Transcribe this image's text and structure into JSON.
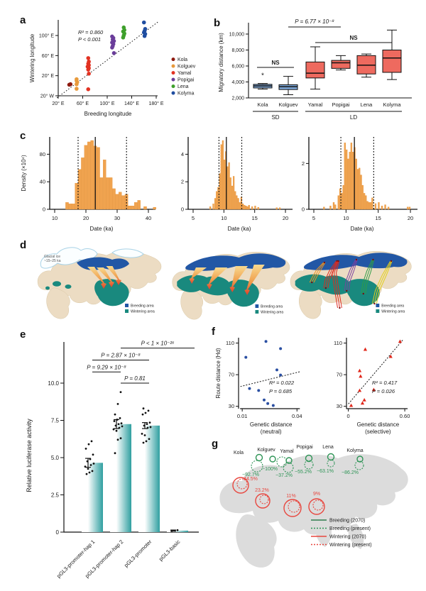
{
  "panels": {
    "a": "a",
    "b": "b",
    "c": "c",
    "d": "d",
    "e": "e",
    "f": "f",
    "g": "g"
  },
  "chart_data": [
    {
      "id": "a",
      "type": "scatter",
      "xlabel": "Breeding longitude",
      "ylabel": "Wintering longitude",
      "r2": "R² = 0.860",
      "p": "P < 0.001",
      "xtick_vals": [
        20,
        60,
        100,
        140,
        180
      ],
      "xtick_labels": [
        "20° E",
        "60° E",
        "100° E",
        "140° E",
        "180° E"
      ],
      "ytick_vals": [
        -20,
        20,
        60,
        100
      ],
      "ytick_labels": [
        "20° W",
        "20° E",
        "60° E",
        "100° E"
      ],
      "xlim": [
        14,
        186
      ],
      "ylim": [
        -28,
        132
      ],
      "trend": [
        [
          18,
          -24
        ],
        [
          184,
          128
        ]
      ],
      "series": [
        {
          "name": "Kola",
          "color": "#8e1b10",
          "points": [
            [
              38,
              2
            ],
            [
              40,
              3
            ]
          ]
        },
        {
          "name": "Kolguev",
          "color": "#e89a3c",
          "points": [
            [
              50,
              13
            ],
            [
              50,
              10
            ],
            [
              51,
              7
            ],
            [
              50,
              3
            ],
            [
              50,
              -6
            ]
          ]
        },
        {
          "name": "Yamal",
          "color": "#e23222",
          "points": [
            [
              69,
              55
            ],
            [
              70,
              48
            ],
            [
              69,
              44
            ],
            [
              70,
              41
            ],
            [
              68,
              38
            ],
            [
              70,
              35
            ],
            [
              69,
              32
            ],
            [
              70,
              24
            ],
            [
              69,
              -7
            ]
          ]
        },
        {
          "name": "Popigai",
          "color": "#6a3d9a",
          "points": [
            [
              108,
              98
            ],
            [
              110,
              95
            ],
            [
              109,
              92
            ],
            [
              111,
              89
            ],
            [
              108,
              86
            ],
            [
              110,
              83
            ],
            [
              109,
              79
            ],
            [
              108,
              76
            ],
            [
              111,
              65
            ]
          ]
        },
        {
          "name": "Lena",
          "color": "#3fa02c",
          "points": [
            [
              127,
              116
            ],
            [
              128,
              111
            ],
            [
              126,
              108
            ],
            [
              128,
              104
            ],
            [
              127,
              100
            ],
            [
              126,
              96
            ]
          ]
        },
        {
          "name": "Kolyma",
          "color": "#1f4da0",
          "points": [
            [
              160,
              126
            ],
            [
              162,
              113
            ],
            [
              161,
              109
            ],
            [
              160,
              106
            ],
            [
              162,
              103
            ],
            [
              161,
              99
            ]
          ]
        }
      ]
    },
    {
      "id": "b",
      "type": "box",
      "ylabel": "Migratory distance (km)",
      "ytick_vals": [
        2000,
        4000,
        6000,
        8000,
        10000
      ],
      "ytick_labels": [
        "2,000",
        "4,000",
        "6,000",
        "8,000",
        "10,000"
      ],
      "categories": [
        "Kola",
        "Kolguev",
        "Yamal",
        "Popigai",
        "Lena",
        "Kolyma"
      ],
      "group_sd": "SD",
      "group_ld": "LD",
      "p_label": "P = 6.77 × 10⁻⁸",
      "ns1": "NS",
      "ns2": "NS",
      "blue": "#7da7d8",
      "red": "#ee6a5f",
      "boxes": [
        {
          "lo": 3100,
          "q1": 3250,
          "med": 3500,
          "q3": 3700,
          "hi": 3800,
          "out": [
            4800
          ]
        },
        {
          "lo": 2400,
          "q1": 3050,
          "med": 3400,
          "q3": 3650,
          "hi": 4700,
          "out": []
        },
        {
          "lo": 3100,
          "q1": 4500,
          "med": 5100,
          "q3": 6500,
          "hi": 8400,
          "out": []
        },
        {
          "lo": 5500,
          "q1": 5700,
          "med": 6400,
          "q3": 6700,
          "hi": 7300,
          "out": []
        },
        {
          "lo": 4600,
          "q1": 5000,
          "med": 6100,
          "q3": 7300,
          "hi": 7500,
          "out": []
        },
        {
          "lo": 4300,
          "q1": 5200,
          "med": 7000,
          "q3": 8000,
          "hi": 10500,
          "out": []
        }
      ]
    },
    {
      "id": "c1",
      "type": "histogram",
      "ylabel": "Density (×10⁴)",
      "xlabel": "Date (ka)",
      "xtick_vals": [
        10,
        20,
        30,
        40
      ],
      "ytick_vals": [
        0,
        40,
        80
      ],
      "solid": 23,
      "dashed": [
        17.5,
        33
      ],
      "binwidth": 1,
      "color": "#f0a34f",
      "bins": [
        [
          14,
          10
        ],
        [
          15,
          8
        ],
        [
          16,
          8
        ],
        [
          17,
          38
        ],
        [
          18,
          58
        ],
        [
          19,
          75
        ],
        [
          20,
          93
        ],
        [
          21,
          98
        ],
        [
          22,
          100
        ],
        [
          23,
          92
        ],
        [
          24,
          90
        ],
        [
          25,
          46
        ],
        [
          26,
          72
        ],
        [
          27,
          46
        ],
        [
          28,
          46
        ],
        [
          29,
          30
        ],
        [
          30,
          22
        ],
        [
          31,
          25
        ],
        [
          32,
          20
        ],
        [
          33,
          22
        ],
        [
          34,
          5
        ],
        [
          35,
          5
        ],
        [
          36,
          10
        ],
        [
          37,
          13
        ],
        [
          39,
          4
        ],
        [
          42,
          3
        ]
      ]
    },
    {
      "id": "c2",
      "type": "histogram",
      "xlabel": "Date (ka)",
      "xtick_vals": [
        5,
        10,
        15,
        20
      ],
      "ytick_vals": [
        0,
        2,
        4
      ],
      "solid": 10.4,
      "dashed": [
        9.2,
        12.9
      ],
      "binwidth": 0.25,
      "color": "#f0a34f",
      "bins": [
        [
          7.8,
          0.2
        ],
        [
          8.3,
          0.4
        ],
        [
          8.6,
          0.8
        ],
        [
          8.85,
          1.3
        ],
        [
          9.1,
          1.6
        ],
        [
          9.35,
          2.6
        ],
        [
          9.6,
          4.7
        ],
        [
          9.85,
          5.0
        ],
        [
          10.1,
          3.6
        ],
        [
          10.35,
          4.2
        ],
        [
          10.6,
          3.1
        ],
        [
          10.85,
          3.4
        ],
        [
          11.1,
          2.3
        ],
        [
          11.35,
          1.7
        ],
        [
          11.6,
          2.4
        ],
        [
          11.85,
          1.3
        ],
        [
          12.1,
          1.0
        ],
        [
          12.35,
          0.8
        ],
        [
          12.6,
          0.5
        ],
        [
          12.85,
          0.9
        ],
        [
          13.1,
          0.4
        ],
        [
          13.35,
          0.3
        ],
        [
          13.6,
          0.25
        ],
        [
          13.85,
          0.2
        ],
        [
          14.1,
          0.3
        ],
        [
          14.6,
          0.2
        ],
        [
          15.1,
          0.25
        ],
        [
          15.6,
          0.15
        ],
        [
          18.6,
          0.12
        ],
        [
          19.1,
          0.12
        ]
      ]
    },
    {
      "id": "c3",
      "type": "histogram",
      "xlabel": "Date (ka)",
      "xtick_vals": [
        5,
        10,
        15,
        20
      ],
      "ytick_vals": [
        0,
        2
      ],
      "solid": 11.3,
      "dashed": [
        9.2,
        14.3
      ],
      "binwidth": 0.25,
      "color": "#f0a34f",
      "bins": [
        [
          6.6,
          0.1
        ],
        [
          7.6,
          0.15
        ],
        [
          8.1,
          0.3
        ],
        [
          8.35,
          0.2
        ],
        [
          8.85,
          0.6
        ],
        [
          9.1,
          0.9
        ],
        [
          9.35,
          0.7
        ],
        [
          9.6,
          1.05
        ],
        [
          9.85,
          2.9
        ],
        [
          10.1,
          2.6
        ],
        [
          10.35,
          2.2
        ],
        [
          10.6,
          2.5
        ],
        [
          10.85,
          2.9
        ],
        [
          11.1,
          2.5
        ],
        [
          11.35,
          2.7
        ],
        [
          11.6,
          2.2
        ],
        [
          11.85,
          1.75
        ],
        [
          12.1,
          1.8
        ],
        [
          12.35,
          1.5
        ],
        [
          12.6,
          1.05
        ],
        [
          12.85,
          0.7
        ],
        [
          13.1,
          0.6
        ],
        [
          13.35,
          0.35
        ],
        [
          13.6,
          0.3
        ],
        [
          13.85,
          0.3
        ],
        [
          14.1,
          0.5
        ],
        [
          14.6,
          0.25
        ],
        [
          15.1,
          0.3
        ],
        [
          15.6,
          0.15
        ],
        [
          16.1,
          0.2
        ],
        [
          16.6,
          0.1
        ],
        [
          19.6,
          0.1
        ],
        [
          19.9,
          0.1
        ]
      ]
    },
    {
      "id": "e",
      "type": "bar",
      "ylabel": "Relative luciferase activity",
      "ytick_vals": [
        0,
        2.5,
        5,
        7.5,
        10
      ],
      "ytick_labels": [
        "0",
        "2.5",
        "5.0",
        "7.5",
        "10.0"
      ],
      "categories": [
        "pGL3-promoter-hap 1",
        "pGL3-promoter-hap 2",
        "pGL3-promoter",
        "pGL3-basic"
      ],
      "means": [
        4.65,
        7.25,
        7.15,
        0.1
      ],
      "errors": [
        0.3,
        0.3,
        0.2,
        0.04
      ],
      "bar_color": "#2f9fa0",
      "dots": [
        [
          3.9,
          4.0,
          4.1,
          4.25,
          4.4,
          4.5,
          4.6,
          4.75,
          4.9,
          5.2,
          5.6,
          5.9,
          6.1
        ],
        [
          5.3,
          6.2,
          6.3,
          6.8,
          6.9,
          7.0,
          7.1,
          7.15,
          7.25,
          7.3,
          7.45,
          7.55,
          7.65,
          7.9,
          8.6,
          9.4
        ],
        [
          6.0,
          6.1,
          6.25,
          6.5,
          6.6,
          7.0,
          7.05,
          7.15,
          7.25,
          7.35,
          7.9,
          8.0,
          8.15,
          8.3
        ],
        [
          0.07,
          0.1,
          0.13
        ]
      ],
      "brackets": [
        {
          "label": "P = 0.81",
          "from": 1,
          "to": 2,
          "y": 10.0
        },
        {
          "label": "P = 9.29 × 10⁻⁸",
          "from": 0,
          "to": 1,
          "y": 10.75
        },
        {
          "label": "P = 2.87 × 10⁻⁸",
          "from": 0,
          "to": 2,
          "y": 11.55
        },
        {
          "label": "P < 1 × 10⁻²⁶",
          "from": 1,
          "to": 3,
          "y": 12.35
        }
      ]
    },
    {
      "id": "f1",
      "type": "scatter",
      "ylabel": "Route distance (Hd)",
      "xlabel1": "Genetic distance",
      "xlabel2": "(neutral)",
      "r2": "R² = 0.022",
      "p": "P = 0.685",
      "xtick_vals": [
        0.01,
        0.04
      ],
      "xtick_labels": [
        "0.01",
        "0.04"
      ],
      "ytick_vals": [
        30,
        70,
        110
      ],
      "marker": "circle",
      "color": "#2a4fa2",
      "trend": [
        [
          0.009,
          55
        ],
        [
          0.042,
          74
        ]
      ],
      "points": [
        [
          0.012,
          92
        ],
        [
          0.023,
          112
        ],
        [
          0.031,
          103
        ],
        [
          0.029,
          76
        ],
        [
          0.031,
          69.5
        ],
        [
          0.014,
          52.5
        ],
        [
          0.019,
          50
        ],
        [
          0.022,
          38
        ],
        [
          0.024,
          33.5
        ],
        [
          0.027,
          31
        ]
      ]
    },
    {
      "id": "f2",
      "type": "scatter",
      "xlabel1": "Genetic distance",
      "xlabel2": "(selective)",
      "r2": "R² = 0.417",
      "p": "P = 0.026",
      "xtick_vals": [
        0,
        0.6
      ],
      "xtick_labels": [
        "0",
        "0.60"
      ],
      "ytick_vals": [
        30,
        70,
        110
      ],
      "marker": "triangle",
      "color": "#e0271a",
      "trend": [
        [
          0,
          33
        ],
        [
          0.58,
          114
        ]
      ],
      "points": [
        [
          0.55,
          112
        ],
        [
          0.18,
          102
        ],
        [
          0.45,
          93
        ],
        [
          0.12,
          75
        ],
        [
          0.13,
          68
        ],
        [
          0.27,
          51
        ],
        [
          0.12,
          50
        ],
        [
          0.17,
          38
        ],
        [
          0.15,
          34
        ],
        [
          0.03,
          31
        ]
      ]
    }
  ],
  "panel_d": {
    "glacial1": "Glacial ice",
    "glacial2": "~15–25 ka",
    "legend": [
      {
        "label": "Breeding area",
        "color": "#2257a5"
      },
      {
        "label": "Wintering area",
        "color": "#19897e"
      }
    ]
  },
  "panel_g": {
    "green": "#2e9456",
    "red": "#e8473f",
    "sites": [
      {
        "name": "Kola",
        "pct": "−92.7%"
      },
      {
        "name": "Kolguev",
        "pct": "−100%"
      },
      {
        "name": "Yamal",
        "pct": "−37.2%"
      },
      {
        "name": "Popigai",
        "pct": "−55.2%"
      },
      {
        "name": "Lena",
        "pct": "−63.1%"
      },
      {
        "name": "Kolyma",
        "pct": "−86.2%"
      }
    ],
    "wintering": [
      {
        "pct": "44.5%"
      },
      {
        "pct": "23.2%"
      },
      {
        "pct": "11%"
      },
      {
        "pct": "9%"
      }
    ],
    "legend": [
      {
        "label": "Breeding (2070)",
        "color": "#2e7d4f",
        "dash": false
      },
      {
        "label": "Breeding (present)",
        "color": "#2e9456",
        "dash": true
      },
      {
        "label": "Wintering (2070)",
        "color": "#e8473f",
        "dash": false
      },
      {
        "label": "Wintering (present)",
        "color": "#e8473f",
        "dash": true
      }
    ]
  }
}
